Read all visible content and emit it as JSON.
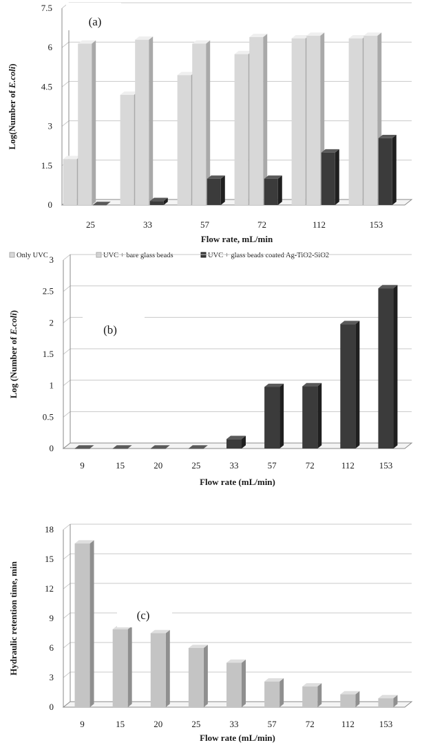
{
  "colors": {
    "light_face": "#d8d8d8",
    "light_side": "#a9a9a9",
    "light_top": "#efefef",
    "dark_face": "#3b3b3b",
    "dark_side": "#1f1f1f",
    "dark_top": "#5a5a5a",
    "mid_face": "#c4c4c4",
    "mid_side": "#8f8f8f",
    "mid_top": "#dedede"
  },
  "chart_data": [
    {
      "id": "a",
      "type": "bar",
      "panel_label": "(a)",
      "title": "",
      "xlabel": "Flow rate, mL/min",
      "ylabel_prefix": "Log(Number of ",
      "ylabel_italic": "E.coli",
      "ylabel_suffix": ")",
      "yticks": [
        "0",
        "1.5",
        "3",
        "4.5",
        "6",
        "7.5"
      ],
      "ylim": [
        0,
        7.5
      ],
      "grid": true,
      "legend_position": "bottom",
      "categories": [
        "25",
        "33",
        "57",
        "72",
        "112",
        "153"
      ],
      "series": [
        {
          "name": "Only UVC",
          "color_key": "light",
          "values": [
            1.75,
            4.2,
            4.95,
            5.75,
            6.35,
            6.35
          ]
        },
        {
          "name": "UVC + bare glass beads",
          "color_key": "light",
          "values": [
            6.15,
            6.3,
            6.15,
            6.4,
            6.45,
            6.45
          ]
        },
        {
          "name": "UVC + glass beads coated Ag-TiO2-SiO2",
          "color_key": "dark",
          "values": [
            0,
            0.15,
            1.0,
            1.0,
            2.0,
            2.55
          ]
        }
      ]
    },
    {
      "id": "b",
      "type": "bar",
      "panel_label": "(b)",
      "title": "",
      "xlabel": "Flow rate (mL/min)",
      "ylabel_prefix": "Log (Number of ",
      "ylabel_italic": "E.coli",
      "ylabel_suffix": ")",
      "yticks": [
        "0",
        "0.5",
        "1",
        "1.5",
        "2",
        "2.5",
        "3"
      ],
      "ylim": [
        0,
        3
      ],
      "grid": true,
      "categories": [
        "9",
        "15",
        "20",
        "25",
        "33",
        "57",
        "72",
        "112",
        "153"
      ],
      "series": [
        {
          "color_key": "dark",
          "values": [
            0,
            0,
            0,
            0,
            0.15,
            0.98,
            0.99,
            1.98,
            2.55
          ]
        }
      ]
    },
    {
      "id": "c",
      "type": "bar",
      "panel_label": "(c)",
      "title": "",
      "xlabel": "Flow rate (mL/min)",
      "ylabel_prefix": "Hydraulic retention  time, min",
      "ylabel_italic": "",
      "ylabel_suffix": "",
      "yticks": [
        "0",
        "3",
        "6",
        "9",
        "12",
        "15",
        "18"
      ],
      "ylim": [
        0,
        18
      ],
      "grid": true,
      "categories": [
        "9",
        "15",
        "20",
        "25",
        "33",
        "57",
        "72",
        "112",
        "153"
      ],
      "series": [
        {
          "color_key": "mid",
          "values": [
            16.6,
            7.9,
            7.5,
            6.0,
            4.5,
            2.6,
            2.1,
            1.3,
            0.9
          ]
        }
      ]
    }
  ]
}
